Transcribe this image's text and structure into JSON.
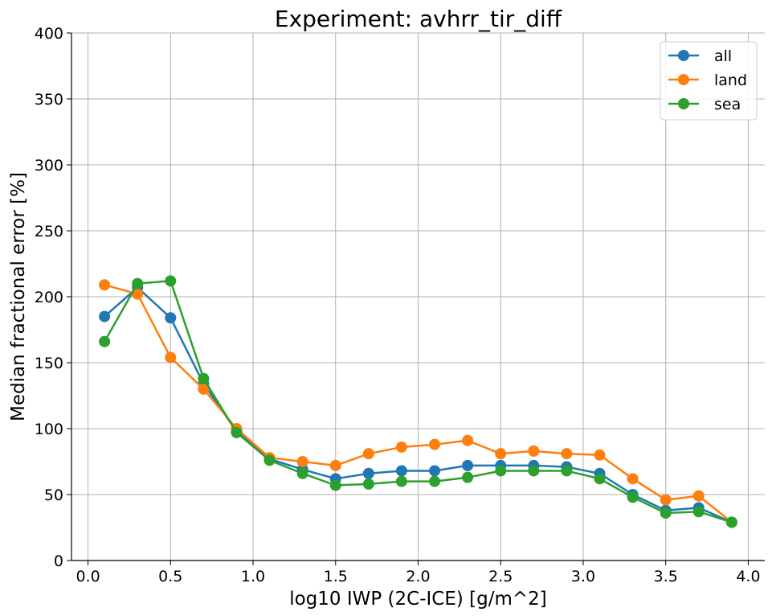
{
  "chart_data": {
    "type": "line",
    "title": "Experiment: avhrr_tir_diff",
    "xlabel": "log10 IWP (2C-ICE) [g/m^2]",
    "ylabel": "Median fractional error [%]",
    "xlim": [
      -0.1,
      4.1
    ],
    "ylim": [
      0,
      400
    ],
    "xticks": [
      0.0,
      0.5,
      1.0,
      1.5,
      2.0,
      2.5,
      3.0,
      3.5,
      4.0
    ],
    "xtick_labels": [
      "0.0",
      "0.5",
      "1.0",
      "1.5",
      "2.0",
      "2.5",
      "3.0",
      "3.5",
      "4.0"
    ],
    "yticks": [
      0,
      50,
      100,
      150,
      200,
      250,
      300,
      350,
      400
    ],
    "ytick_labels": [
      "0",
      "50",
      "100",
      "150",
      "200",
      "250",
      "300",
      "350",
      "400"
    ],
    "grid": true,
    "legend_position": "top-right",
    "x": [
      0.1,
      0.3,
      0.5,
      0.7,
      0.9,
      1.1,
      1.3,
      1.5,
      1.7,
      1.9,
      2.1,
      2.3,
      2.5,
      2.7,
      2.9,
      3.1,
      3.3,
      3.5,
      3.7,
      3.9
    ],
    "series": [
      {
        "name": "all",
        "color": "#1f77b4",
        "values": [
          185,
          207,
          184,
          134,
          98,
          77,
          69,
          62,
          66,
          68,
          68,
          72,
          72,
          72,
          71,
          66,
          50,
          38,
          40,
          29
        ]
      },
      {
        "name": "land",
        "color": "#ff7f0e",
        "values": [
          209,
          202,
          154,
          130,
          100,
          78,
          75,
          72,
          81,
          86,
          88,
          91,
          81,
          83,
          81,
          80,
          62,
          46,
          49,
          29
        ]
      },
      {
        "name": "sea",
        "color": "#2ca02c",
        "values": [
          166,
          210,
          212,
          138,
          97,
          76,
          66,
          57,
          58,
          60,
          60,
          63,
          68,
          68,
          68,
          62,
          48,
          36,
          37,
          29
        ]
      }
    ]
  }
}
